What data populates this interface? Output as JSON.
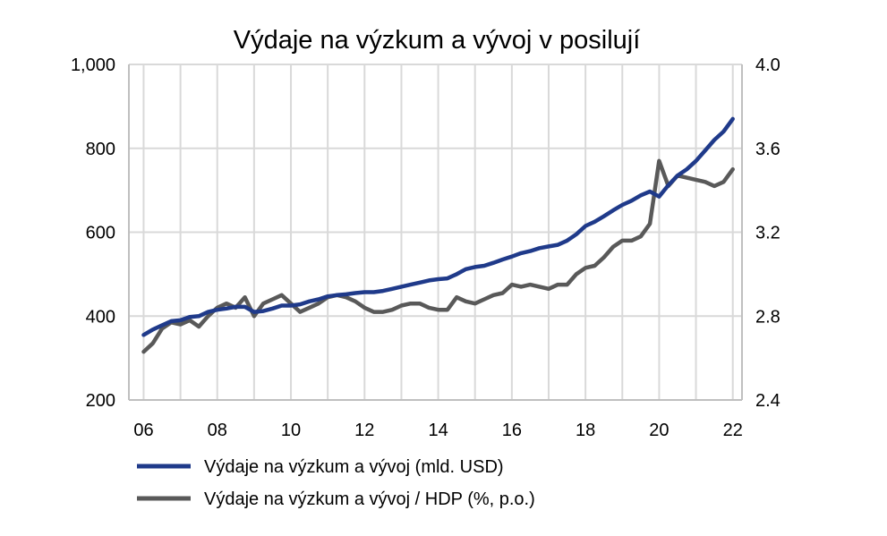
{
  "chart_data": {
    "type": "line",
    "title": "Výdaje na výzkum a vývoj v posilují",
    "xlabel": "",
    "ylabel": "",
    "y2label": "",
    "grid": true,
    "legend_position": "bottom",
    "xlim": [
      2005.6,
      2022.25
    ],
    "ylim": [
      200,
      1000
    ],
    "y2lim": [
      2.4,
      4.0
    ],
    "x_ticks": [
      2006,
      2008,
      2010,
      2012,
      2014,
      2016,
      2018,
      2020,
      2022
    ],
    "x_tick_labels": [
      "06",
      "08",
      "10",
      "12",
      "14",
      "16",
      "18",
      "20",
      "22"
    ],
    "y_ticks": [
      200,
      400,
      600,
      800,
      1000
    ],
    "y_tick_labels": [
      "200",
      "400",
      "600",
      "800",
      "1,000"
    ],
    "y2_ticks": [
      2.4,
      2.8,
      3.2,
      3.6,
      4.0
    ],
    "y2_tick_labels": [
      "2.4",
      "2.8",
      "3.2",
      "3.6",
      "4.0"
    ],
    "series": [
      {
        "name": "Výdaje na výzkum a vývoj (mld. USD)",
        "axis": "left",
        "color": "#1f3a8a",
        "points": [
          [
            2006.0,
            355
          ],
          [
            2006.25,
            368
          ],
          [
            2006.5,
            378
          ],
          [
            2006.75,
            388
          ],
          [
            2007.0,
            390
          ],
          [
            2007.25,
            398
          ],
          [
            2007.5,
            400
          ],
          [
            2007.75,
            410
          ],
          [
            2008.0,
            415
          ],
          [
            2008.25,
            418
          ],
          [
            2008.5,
            422
          ],
          [
            2008.75,
            422
          ],
          [
            2009.0,
            410
          ],
          [
            2009.25,
            412
          ],
          [
            2009.5,
            418
          ],
          [
            2009.75,
            425
          ],
          [
            2010.0,
            425
          ],
          [
            2010.25,
            428
          ],
          [
            2010.5,
            435
          ],
          [
            2010.75,
            440
          ],
          [
            2011.0,
            447
          ],
          [
            2011.25,
            450
          ],
          [
            2011.5,
            452
          ],
          [
            2011.75,
            455
          ],
          [
            2012.0,
            457
          ],
          [
            2012.25,
            457
          ],
          [
            2012.5,
            460
          ],
          [
            2012.75,
            465
          ],
          [
            2013.0,
            470
          ],
          [
            2013.25,
            475
          ],
          [
            2013.5,
            480
          ],
          [
            2013.75,
            485
          ],
          [
            2014.0,
            488
          ],
          [
            2014.25,
            490
          ],
          [
            2014.5,
            500
          ],
          [
            2014.75,
            512
          ],
          [
            2015.0,
            517
          ],
          [
            2015.25,
            520
          ],
          [
            2015.5,
            527
          ],
          [
            2015.75,
            535
          ],
          [
            2016.0,
            542
          ],
          [
            2016.25,
            550
          ],
          [
            2016.5,
            555
          ],
          [
            2016.75,
            562
          ],
          [
            2017.0,
            566
          ],
          [
            2017.25,
            570
          ],
          [
            2017.5,
            580
          ],
          [
            2017.75,
            595
          ],
          [
            2018.0,
            615
          ],
          [
            2018.25,
            625
          ],
          [
            2018.5,
            638
          ],
          [
            2018.75,
            652
          ],
          [
            2019.0,
            665
          ],
          [
            2019.25,
            675
          ],
          [
            2019.5,
            688
          ],
          [
            2019.75,
            697
          ],
          [
            2020.0,
            685
          ],
          [
            2020.25,
            712
          ],
          [
            2020.5,
            735
          ],
          [
            2020.75,
            750
          ],
          [
            2021.0,
            770
          ],
          [
            2021.25,
            795
          ],
          [
            2021.5,
            820
          ],
          [
            2021.75,
            840
          ],
          [
            2022.0,
            870
          ]
        ]
      },
      {
        "name": "Výdaje na výzkum a vývoj / HDP (%, p.o.)",
        "axis": "right",
        "color": "#595959",
        "points": [
          [
            2006.0,
            2.63
          ],
          [
            2006.25,
            2.67
          ],
          [
            2006.5,
            2.74
          ],
          [
            2006.75,
            2.77
          ],
          [
            2007.0,
            2.76
          ],
          [
            2007.25,
            2.78
          ],
          [
            2007.5,
            2.75
          ],
          [
            2007.75,
            2.8
          ],
          [
            2008.0,
            2.84
          ],
          [
            2008.25,
            2.86
          ],
          [
            2008.5,
            2.84
          ],
          [
            2008.75,
            2.89
          ],
          [
            2009.0,
            2.8
          ],
          [
            2009.25,
            2.86
          ],
          [
            2009.5,
            2.88
          ],
          [
            2009.75,
            2.9
          ],
          [
            2010.0,
            2.86
          ],
          [
            2010.25,
            2.82
          ],
          [
            2010.5,
            2.84
          ],
          [
            2010.75,
            2.86
          ],
          [
            2011.0,
            2.89
          ],
          [
            2011.25,
            2.9
          ],
          [
            2011.5,
            2.89
          ],
          [
            2011.75,
            2.87
          ],
          [
            2012.0,
            2.84
          ],
          [
            2012.25,
            2.82
          ],
          [
            2012.5,
            2.82
          ],
          [
            2012.75,
            2.83
          ],
          [
            2013.0,
            2.85
          ],
          [
            2013.25,
            2.86
          ],
          [
            2013.5,
            2.86
          ],
          [
            2013.75,
            2.84
          ],
          [
            2014.0,
            2.83
          ],
          [
            2014.25,
            2.83
          ],
          [
            2014.5,
            2.89
          ],
          [
            2014.75,
            2.87
          ],
          [
            2015.0,
            2.86
          ],
          [
            2015.25,
            2.88
          ],
          [
            2015.5,
            2.9
          ],
          [
            2015.75,
            2.91
          ],
          [
            2016.0,
            2.95
          ],
          [
            2016.25,
            2.94
          ],
          [
            2016.5,
            2.95
          ],
          [
            2016.75,
            2.94
          ],
          [
            2017.0,
            2.93
          ],
          [
            2017.25,
            2.95
          ],
          [
            2017.5,
            2.95
          ],
          [
            2017.75,
            3.0
          ],
          [
            2018.0,
            3.03
          ],
          [
            2018.25,
            3.04
          ],
          [
            2018.5,
            3.08
          ],
          [
            2018.75,
            3.13
          ],
          [
            2019.0,
            3.16
          ],
          [
            2019.25,
            3.16
          ],
          [
            2019.5,
            3.18
          ],
          [
            2019.75,
            3.24
          ],
          [
            2020.0,
            3.54
          ],
          [
            2020.25,
            3.42
          ],
          [
            2020.5,
            3.47
          ],
          [
            2020.75,
            3.46
          ],
          [
            2021.0,
            3.45
          ],
          [
            2021.25,
            3.44
          ],
          [
            2021.5,
            3.42
          ],
          [
            2021.75,
            3.44
          ],
          [
            2022.0,
            3.5
          ]
        ]
      }
    ]
  }
}
